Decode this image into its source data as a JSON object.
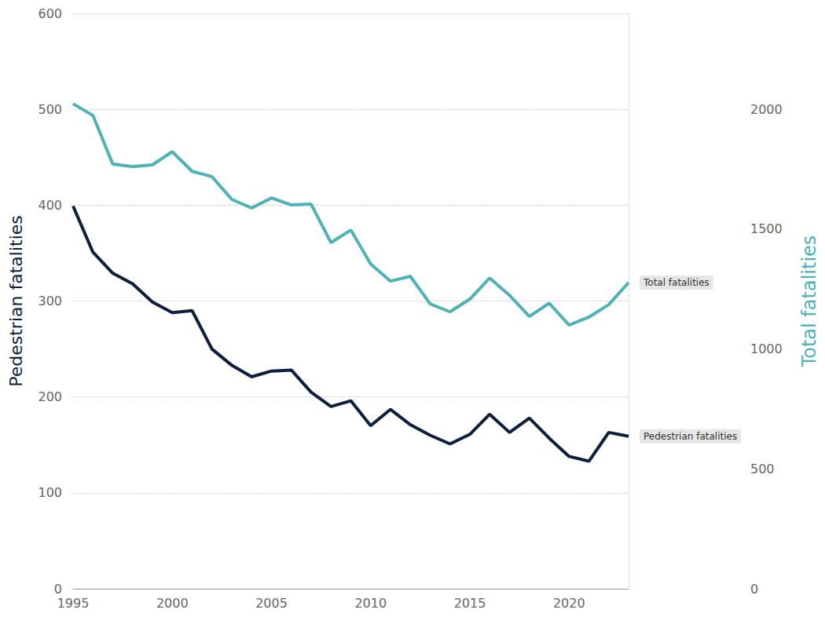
{
  "chart_data": {
    "type": "line",
    "ylabel": "Pedestrian fatalities",
    "y2label": "Total fatalities",
    "x": [
      1995,
      1996,
      1997,
      1998,
      1999,
      2000,
      2001,
      2002,
      2003,
      2004,
      2005,
      2006,
      2007,
      2008,
      2009,
      2010,
      2011,
      2012,
      2013,
      2014,
      2015,
      2016,
      2017,
      2018,
      2019,
      2020,
      2021,
      2022,
      2023
    ],
    "series": [
      {
        "name": "Total fatalities",
        "color": "#4fb3b5",
        "axis": "y2",
        "values": [
          2023,
          1974,
          1771,
          1761,
          1768,
          1823,
          1741,
          1719,
          1624,
          1588,
          1630,
          1601,
          1604,
          1444,
          1496,
          1355,
          1283,
          1303,
          1188,
          1155,
          1208,
          1296,
          1224,
          1136,
          1191,
          1100,
          1133,
          1185,
          1277
        ]
      },
      {
        "name": "Pedestrian fatalities",
        "color": "#0d1f3c",
        "values": [
          399,
          351,
          329,
          318,
          299,
          288,
          290,
          250,
          233,
          221,
          227,
          228,
          205,
          190,
          196,
          170,
          187,
          171,
          160,
          151,
          161,
          182,
          163,
          178,
          157,
          138,
          133,
          163,
          159
        ]
      }
    ],
    "xlim": [
      1995,
      2023
    ],
    "xticks": [
      1995,
      2000,
      2005,
      2010,
      2015,
      2020
    ],
    "ylim": [
      0,
      600
    ],
    "yticks": [
      0,
      100,
      200,
      300,
      400,
      500,
      600
    ],
    "y2lim": [
      0,
      2400
    ],
    "y2ticks": [
      0,
      500,
      1000,
      1500,
      2000
    ],
    "grid": true
  }
}
